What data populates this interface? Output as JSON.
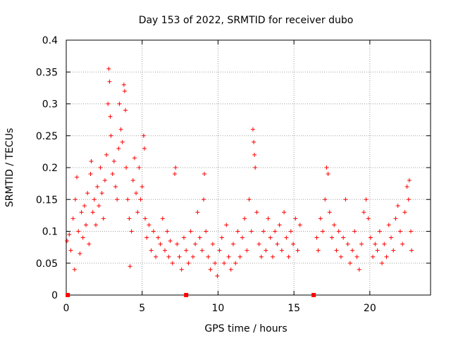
{
  "chart_data": {
    "type": "scatter",
    "title": "Day 153 of 2022, SRMTID for receiver dubo",
    "xlabel": "GPS time / hours",
    "ylabel": "SRMTID / TECUs",
    "xlim": [
      0,
      24
    ],
    "ylim": [
      0,
      0.4
    ],
    "x_ticks": [
      {
        "value": 0,
        "label": "0"
      },
      {
        "value": 5,
        "label": "5"
      },
      {
        "value": 10,
        "label": "10"
      },
      {
        "value": 15,
        "label": "15"
      },
      {
        "value": 20,
        "label": "20"
      }
    ],
    "y_ticks": [
      {
        "value": 0,
        "label": "0"
      },
      {
        "value": 0.05,
        "label": "0.05"
      },
      {
        "value": 0.1,
        "label": "0.1"
      },
      {
        "value": 0.15,
        "label": "0.15"
      },
      {
        "value": 0.2,
        "label": "0.2"
      },
      {
        "value": 0.25,
        "label": "0.25"
      },
      {
        "value": 0.3,
        "label": "0.3"
      },
      {
        "value": 0.35,
        "label": "0.35"
      },
      {
        "value": 0.4,
        "label": "0.4"
      }
    ],
    "grid": true,
    "series": [
      {
        "name": "SRMTID",
        "color": "#ff0000",
        "marker": "plus",
        "points": [
          [
            0.05,
            0.085
          ],
          [
            0.2,
            0.095
          ],
          [
            0.3,
            0.07
          ],
          [
            0.45,
            0.12
          ],
          [
            0.55,
            0.04
          ],
          [
            0.6,
            0.15
          ],
          [
            0.7,
            0.185
          ],
          [
            0.8,
            0.1
          ],
          [
            0.9,
            0.065
          ],
          [
            1.0,
            0.13
          ],
          [
            1.1,
            0.09
          ],
          [
            1.2,
            0.14
          ],
          [
            1.3,
            0.11
          ],
          [
            1.4,
            0.16
          ],
          [
            1.5,
            0.08
          ],
          [
            1.6,
            0.19
          ],
          [
            1.65,
            0.21
          ],
          [
            1.75,
            0.13
          ],
          [
            1.85,
            0.15
          ],
          [
            1.95,
            0.11
          ],
          [
            2.05,
            0.17
          ],
          [
            2.15,
            0.14
          ],
          [
            2.25,
            0.2
          ],
          [
            2.35,
            0.16
          ],
          [
            2.45,
            0.12
          ],
          [
            2.55,
            0.18
          ],
          [
            2.65,
            0.22
          ],
          [
            2.75,
            0.3
          ],
          [
            2.8,
            0.355
          ],
          [
            2.85,
            0.335
          ],
          [
            2.9,
            0.28
          ],
          [
            2.95,
            0.25
          ],
          [
            3.05,
            0.19
          ],
          [
            3.15,
            0.21
          ],
          [
            3.25,
            0.17
          ],
          [
            3.35,
            0.15
          ],
          [
            3.45,
            0.23
          ],
          [
            3.5,
            0.3
          ],
          [
            3.6,
            0.26
          ],
          [
            3.7,
            0.24
          ],
          [
            3.8,
            0.33
          ],
          [
            3.85,
            0.32
          ],
          [
            3.9,
            0.29
          ],
          [
            3.95,
            0.2
          ],
          [
            4.05,
            0.15
          ],
          [
            4.15,
            0.12
          ],
          [
            4.2,
            0.045
          ],
          [
            4.3,
            0.1
          ],
          [
            4.4,
            0.18
          ],
          [
            4.5,
            0.215
          ],
          [
            4.6,
            0.16
          ],
          [
            4.7,
            0.13
          ],
          [
            4.8,
            0.2
          ],
          [
            4.9,
            0.15
          ],
          [
            5.0,
            0.17
          ],
          [
            5.1,
            0.25
          ],
          [
            5.15,
            0.23
          ],
          [
            5.2,
            0.12
          ],
          [
            5.3,
            0.09
          ],
          [
            5.45,
            0.11
          ],
          [
            5.6,
            0.07
          ],
          [
            5.75,
            0.1
          ],
          [
            5.9,
            0.06
          ],
          [
            6.05,
            0.09
          ],
          [
            6.2,
            0.08
          ],
          [
            6.35,
            0.12
          ],
          [
            6.5,
            0.07
          ],
          [
            6.65,
            0.1
          ],
          [
            6.75,
            0.06
          ],
          [
            6.85,
            0.085
          ],
          [
            7.0,
            0.05
          ],
          [
            7.15,
            0.19
          ],
          [
            7.2,
            0.2
          ],
          [
            7.3,
            0.08
          ],
          [
            7.45,
            0.06
          ],
          [
            7.6,
            0.04
          ],
          [
            7.75,
            0.09
          ],
          [
            7.9,
            0.07
          ],
          [
            8.05,
            0.05
          ],
          [
            8.2,
            0.1
          ],
          [
            8.35,
            0.06
          ],
          [
            8.5,
            0.08
          ],
          [
            8.65,
            0.13
          ],
          [
            8.8,
            0.09
          ],
          [
            8.95,
            0.07
          ],
          [
            9.05,
            0.15
          ],
          [
            9.1,
            0.19
          ],
          [
            9.2,
            0.1
          ],
          [
            9.35,
            0.06
          ],
          [
            9.5,
            0.04
          ],
          [
            9.65,
            0.08
          ],
          [
            9.8,
            0.05
          ],
          [
            9.95,
            0.03
          ],
          [
            10.1,
            0.07
          ],
          [
            10.25,
            0.09
          ],
          [
            10.4,
            0.05
          ],
          [
            10.55,
            0.11
          ],
          [
            10.7,
            0.06
          ],
          [
            10.85,
            0.04
          ],
          [
            11.0,
            0.08
          ],
          [
            11.15,
            0.05
          ],
          [
            11.3,
            0.1
          ],
          [
            11.45,
            0.06
          ],
          [
            11.6,
            0.09
          ],
          [
            11.75,
            0.12
          ],
          [
            11.9,
            0.07
          ],
          [
            12.05,
            0.15
          ],
          [
            12.2,
            0.1
          ],
          [
            12.3,
            0.26
          ],
          [
            12.35,
            0.24
          ],
          [
            12.4,
            0.22
          ],
          [
            12.45,
            0.2
          ],
          [
            12.55,
            0.13
          ],
          [
            12.7,
            0.08
          ],
          [
            12.85,
            0.06
          ],
          [
            13.0,
            0.1
          ],
          [
            13.15,
            0.07
          ],
          [
            13.3,
            0.12
          ],
          [
            13.45,
            0.09
          ],
          [
            13.6,
            0.06
          ],
          [
            13.75,
            0.1
          ],
          [
            13.9,
            0.08
          ],
          [
            14.05,
            0.11
          ],
          [
            14.2,
            0.07
          ],
          [
            14.35,
            0.13
          ],
          [
            14.5,
            0.09
          ],
          [
            14.65,
            0.06
          ],
          [
            14.8,
            0.1
          ],
          [
            14.95,
            0.08
          ],
          [
            15.1,
            0.12
          ],
          [
            15.25,
            0.07
          ],
          [
            15.4,
            0.11
          ],
          [
            16.5,
            0.09
          ],
          [
            16.6,
            0.07
          ],
          [
            16.75,
            0.12
          ],
          [
            16.9,
            0.1
          ],
          [
            17.05,
            0.15
          ],
          [
            17.15,
            0.2
          ],
          [
            17.25,
            0.19
          ],
          [
            17.35,
            0.13
          ],
          [
            17.5,
            0.09
          ],
          [
            17.65,
            0.11
          ],
          [
            17.8,
            0.07
          ],
          [
            17.95,
            0.1
          ],
          [
            18.1,
            0.06
          ],
          [
            18.25,
            0.09
          ],
          [
            18.4,
            0.15
          ],
          [
            18.55,
            0.08
          ],
          [
            18.7,
            0.05
          ],
          [
            18.85,
            0.07
          ],
          [
            19.0,
            0.1
          ],
          [
            19.15,
            0.06
          ],
          [
            19.3,
            0.04
          ],
          [
            19.45,
            0.08
          ],
          [
            19.6,
            0.13
          ],
          [
            19.75,
            0.15
          ],
          [
            19.9,
            0.12
          ],
          [
            20.05,
            0.09
          ],
          [
            20.2,
            0.06
          ],
          [
            20.35,
            0.08
          ],
          [
            20.5,
            0.07
          ],
          [
            20.65,
            0.1
          ],
          [
            20.8,
            0.05
          ],
          [
            20.95,
            0.08
          ],
          [
            21.1,
            0.06
          ],
          [
            21.25,
            0.11
          ],
          [
            21.4,
            0.09
          ],
          [
            21.55,
            0.07
          ],
          [
            21.7,
            0.12
          ],
          [
            21.85,
            0.14
          ],
          [
            22.0,
            0.1
          ],
          [
            22.15,
            0.08
          ],
          [
            22.3,
            0.13
          ],
          [
            22.45,
            0.17
          ],
          [
            22.55,
            0.15
          ],
          [
            22.6,
            0.18
          ],
          [
            22.7,
            0.1
          ],
          [
            22.75,
            0.07
          ]
        ]
      },
      {
        "name": "zero markers",
        "color": "#ff0000",
        "marker": "square",
        "points": [
          [
            0.1,
            0
          ],
          [
            7.9,
            0
          ],
          [
            16.3,
            0
          ]
        ]
      }
    ]
  }
}
